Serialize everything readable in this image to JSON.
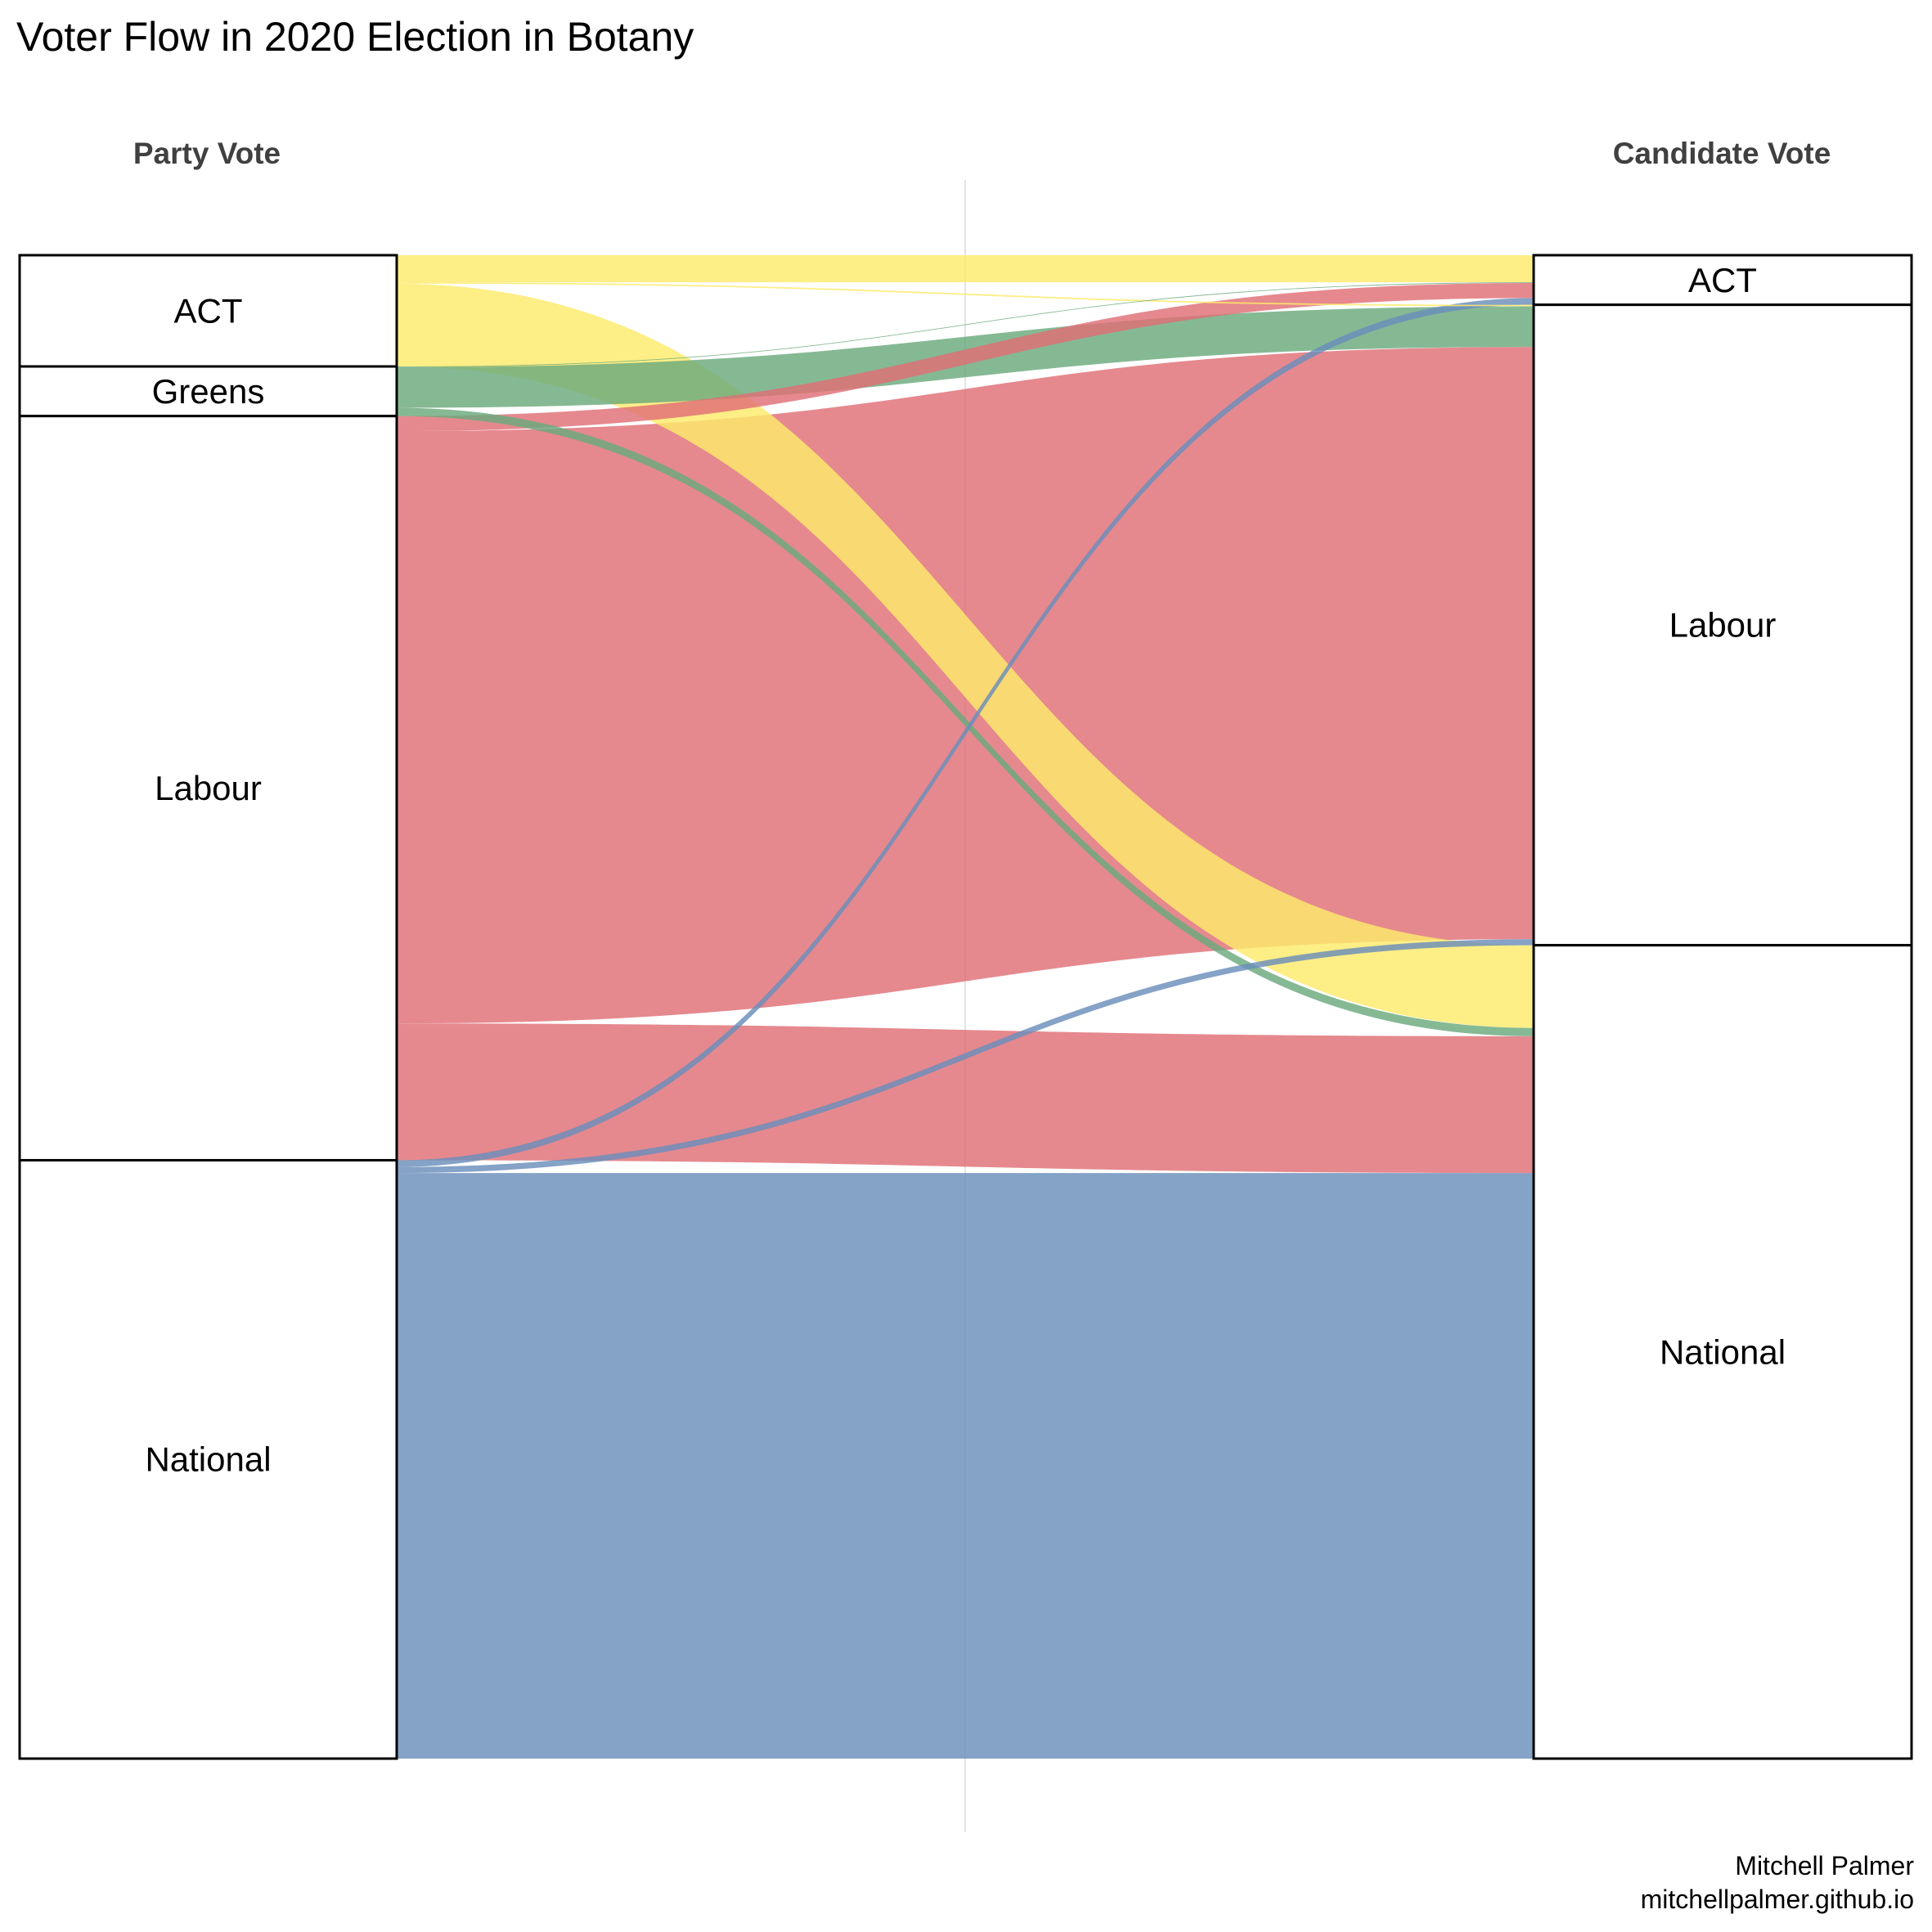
{
  "chart_data": {
    "type": "alluvial",
    "title": "Voter Flow in 2020 Election in Botany",
    "left_axis": "Party Vote",
    "right_axis": "Candidate Vote",
    "caption": [
      "Mitchell Palmer",
      "mitchellpalmer.github.io"
    ],
    "units": "share of votes (%)",
    "left_nodes": [
      {
        "name": "ACT",
        "value": 7.4
      },
      {
        "name": "Greens",
        "value": 3.3
      },
      {
        "name": "Labour",
        "value": 49.5
      },
      {
        "name": "National",
        "value": 39.8
      }
    ],
    "right_nodes": [
      {
        "name": "ACT",
        "value": 3.3
      },
      {
        "name": "Labour",
        "value": 42.6
      },
      {
        "name": "National",
        "value": 54.1
      }
    ],
    "flows": [
      {
        "from": "ACT",
        "to": "ACT",
        "value": 1.8
      },
      {
        "from": "ACT",
        "to": "Labour",
        "value": 0.1
      },
      {
        "from": "ACT",
        "to": "National",
        "value": 5.5
      },
      {
        "from": "Greens",
        "to": "ACT",
        "value": 0.05
      },
      {
        "from": "Greens",
        "to": "Labour",
        "value": 2.7
      },
      {
        "from": "Greens",
        "to": "National",
        "value": 0.55
      },
      {
        "from": "Labour",
        "to": "ACT",
        "value": 1.0
      },
      {
        "from": "Labour",
        "to": "Labour",
        "value": 39.4
      },
      {
        "from": "Labour",
        "to": "National",
        "value": 9.1
      },
      {
        "from": "National",
        "to": "ACT",
        "value": 0.45
      },
      {
        "from": "National",
        "to": "Labour",
        "value": 0.4
      },
      {
        "from": "National",
        "to": "National",
        "value": 38.95
      }
    ],
    "colors": {
      "ACT": "#fdea6b",
      "Greens": "#6aaa7d",
      "Labour": "#df6f75",
      "National": "#6a8dbb"
    }
  }
}
